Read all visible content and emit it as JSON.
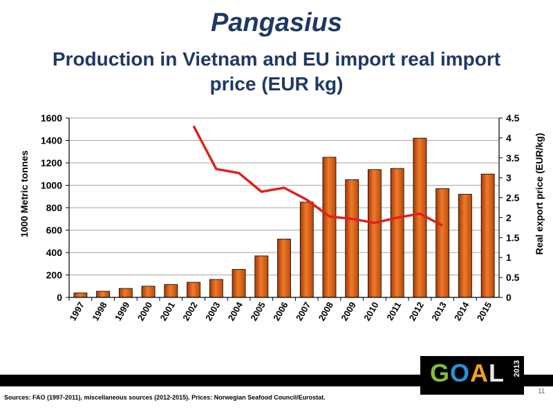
{
  "slide": {
    "title": "Pangasius",
    "subtitle": "Production in Vietnam and EU import real import price (EUR kg)",
    "sources": "Sources: FAO (1997-2011),  miscellaneous sources (2012-2015).  Prices: Norwegian Seafood Council/Eurostat.",
    "page_number": "11",
    "logo": {
      "text": "GOAL",
      "year": "2013"
    }
  },
  "colors": {
    "title": "#1f3864",
    "bar": "#d35400",
    "line": "#e0201b"
  },
  "chart_data": {
    "type": "bar",
    "categories": [
      "1997",
      "1998",
      "1999",
      "2000",
      "2001",
      "2002",
      "2003",
      "2004",
      "2005",
      "2006",
      "2007",
      "2008",
      "2009",
      "2010",
      "2011",
      "2012",
      "2013",
      "2014",
      "2015"
    ],
    "series": [
      {
        "axis": "left",
        "type": "bar",
        "values": [
          40,
          55,
          80,
          100,
          115,
          135,
          160,
          250,
          370,
          520,
          850,
          1250,
          1050,
          1140,
          1150,
          1420,
          970,
          920,
          1100
        ]
      },
      {
        "axis": "right",
        "type": "line",
        "values": [
          null,
          null,
          null,
          null,
          null,
          4.3,
          3.22,
          3.12,
          2.65,
          2.75,
          2.45,
          2.03,
          1.97,
          1.87,
          2.0,
          2.1,
          1.8,
          null,
          null
        ]
      }
    ],
    "ylabel": "1000 Metric tonnes",
    "y2label": "Real export price (EUR/kg)",
    "ylim": [
      0,
      1600
    ],
    "y2lim": [
      0,
      4.5
    ],
    "yticks": [
      "0",
      "200",
      "400",
      "600",
      "800",
      "1000",
      "1200",
      "1400",
      "1600"
    ],
    "y2ticks": [
      "0",
      "0.5",
      "1",
      "1.5",
      "2",
      "2.5",
      "3",
      "3.5",
      "4",
      "4.5"
    ],
    "grid": true,
    "legend": "none"
  }
}
